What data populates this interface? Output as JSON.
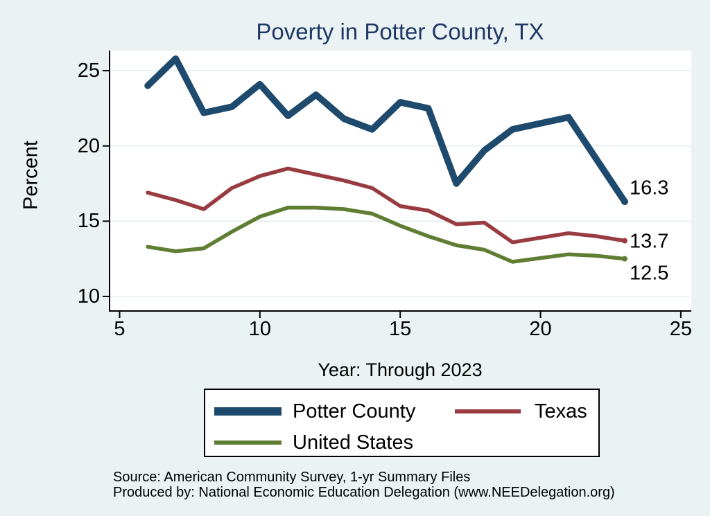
{
  "chart": {
    "title": "Poverty in Potter County, TX",
    "y_axis_label": "Percent",
    "x_axis_label": "Year: Through 2023",
    "footer_line1": "Source: American Community Survey, 1-yr Summary Files",
    "footer_line2": "Produced by: National Economic Education Delegation (www.NEEDelegation.org)"
  },
  "chart_data": {
    "type": "line",
    "title": "Poverty in Potter County, TX",
    "xlabel": "Year: Through 2023",
    "ylabel": "Percent",
    "xlim": [
      5,
      25
    ],
    "ylim": [
      9,
      26.3
    ],
    "x_ticks": [
      5,
      10,
      15,
      20,
      25
    ],
    "y_ticks": [
      10,
      15,
      20,
      25
    ],
    "grid": true,
    "legend_position": "bottom",
    "x_note": "x values are year numbers (6 = 2006 ... 23 = 2023); null = no 2020 ACS 1-yr data point, line drawn straight from 2019 to 2021",
    "x": [
      6,
      7,
      8,
      9,
      10,
      11,
      12,
      13,
      14,
      15,
      16,
      17,
      18,
      19,
      20,
      21,
      22,
      23
    ],
    "series": [
      {
        "name": "Potter County",
        "color": "#1e4a6d",
        "end_label": "16.3",
        "values": [
          24.0,
          25.8,
          22.2,
          22.6,
          24.1,
          22.0,
          23.4,
          21.8,
          21.1,
          22.9,
          22.5,
          17.5,
          19.7,
          21.1,
          null,
          21.9,
          19.1,
          16.3
        ]
      },
      {
        "name": "Texas",
        "color": "#993c42",
        "end_label": "13.7",
        "values": [
          16.9,
          16.4,
          15.8,
          17.2,
          18.0,
          18.5,
          18.1,
          17.7,
          17.2,
          16.0,
          15.7,
          14.8,
          14.9,
          13.6,
          null,
          14.2,
          14.0,
          13.7
        ]
      },
      {
        "name": "United States",
        "color": "#5f7e33",
        "end_label": "12.5",
        "values": [
          13.3,
          13.0,
          13.2,
          14.3,
          15.3,
          15.9,
          15.9,
          15.8,
          15.5,
          14.7,
          14.0,
          13.4,
          13.1,
          12.3,
          null,
          12.8,
          12.7,
          12.5
        ]
      }
    ],
    "colors": {
      "background": "#eaf2f3",
      "plot_background": "#ffffff",
      "gridline": "#e2edef",
      "title_text": "#1f3864",
      "axis_text": "#000000"
    }
  }
}
